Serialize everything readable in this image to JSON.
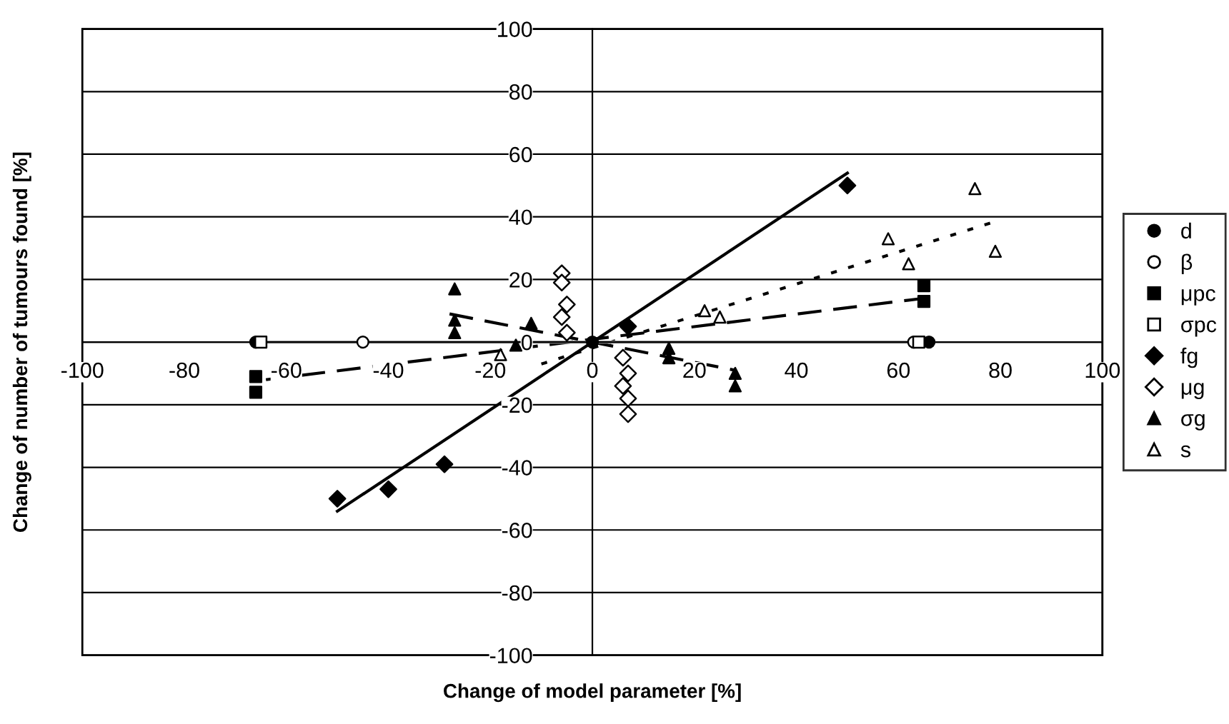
{
  "chart_data": {
    "type": "scatter",
    "xlabel": "Change of model parameter [%]",
    "ylabel": "Change of number of tumours found [%]",
    "xlim": [
      -100,
      100
    ],
    "ylim": [
      -100,
      100
    ],
    "xticks": [
      -100,
      -80,
      -60,
      -40,
      -20,
      0,
      20,
      40,
      60,
      80,
      100
    ],
    "yticks": [
      -100,
      -80,
      -60,
      -40,
      -20,
      0,
      20,
      40,
      60,
      80,
      100
    ],
    "grid": "y",
    "legend": "right",
    "series": [
      {
        "name": "d",
        "color": "#000000",
        "marker": "circle",
        "x": [
          -66,
          0,
          66
        ],
        "values": [
          0,
          0,
          0
        ]
      },
      {
        "name": "β",
        "color": "#ffffff",
        "marker": "circle",
        "x": [
          -45,
          63
        ],
        "values": [
          0,
          0
        ]
      },
      {
        "name": "μpc",
        "color": "#000000",
        "marker": "square",
        "x": [
          -66,
          -66,
          65,
          65
        ],
        "values": [
          -11,
          -16,
          13,
          18
        ]
      },
      {
        "name": "σpc",
        "color": "#ffffff",
        "marker": "square",
        "x": [
          -65,
          64
        ],
        "values": [
          0,
          0
        ]
      },
      {
        "name": "fg",
        "color": "#000000",
        "marker": "diamond",
        "x": [
          -50,
          -40,
          -29,
          7,
          50
        ],
        "values": [
          -50,
          -47,
          -39,
          5,
          50
        ]
      },
      {
        "name": "μg",
        "color": "#ffffff",
        "marker": "diamond",
        "x": [
          -6,
          -6,
          -5,
          -6,
          -5,
          6,
          7,
          6,
          7,
          7
        ],
        "values": [
          22,
          19,
          12,
          8,
          3,
          -5,
          -10,
          -14,
          -18,
          -23
        ]
      },
      {
        "name": "σg",
        "color": "#000000",
        "marker": "triangle",
        "x": [
          -27,
          -27,
          -27,
          -12,
          -15,
          15,
          15,
          28,
          28
        ],
        "values": [
          17,
          7,
          3,
          6,
          -1,
          -2,
          -5,
          -10,
          -14
        ]
      },
      {
        "name": "s",
        "color": "#ffffff",
        "marker": "triangle",
        "x": [
          -18,
          22,
          25,
          58,
          62,
          75,
          79
        ],
        "values": [
          -4,
          10,
          8,
          33,
          25,
          49,
          29
        ]
      },
      {
        "type": "line",
        "color": "#000000",
        "line_style": "solid",
        "x": [
          -50,
          50
        ],
        "values": [
          -54,
          54
        ]
      },
      {
        "type": "line",
        "color": "#000000",
        "line_style": "dashed",
        "x": [
          -64,
          65
        ],
        "values": [
          -12,
          14
        ]
      },
      {
        "type": "line",
        "color": "#000000",
        "line_style": "dashed",
        "x": [
          -28,
          28
        ],
        "values": [
          9,
          -9
        ]
      },
      {
        "type": "line",
        "color": "#000000",
        "line_style": "dotted",
        "x": [
          -10,
          78
        ],
        "values": [
          -7,
          38
        ]
      },
      {
        "type": "line",
        "color": "#999999",
        "line_style": "solid",
        "x": [
          -65,
          65
        ],
        "values": [
          0,
          0
        ]
      }
    ]
  }
}
